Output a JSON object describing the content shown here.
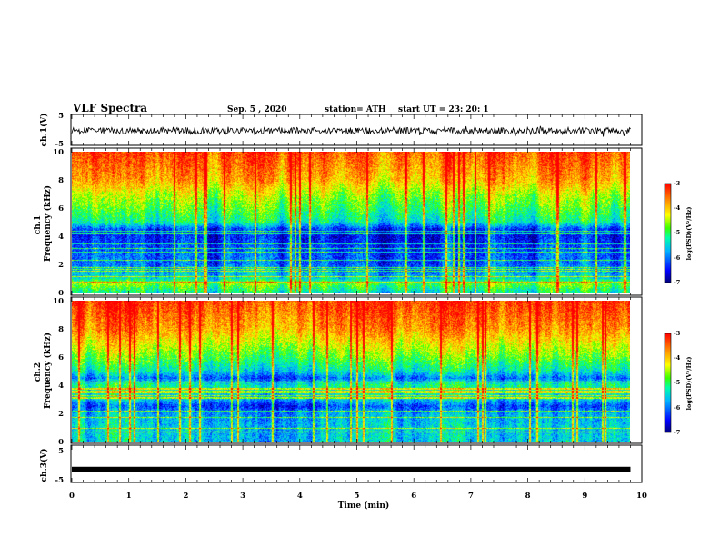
{
  "header": {
    "title": "VLF Spectra",
    "date": "Sep. 5  , 2020",
    "station": "station= ATH",
    "start": "start  UT  =    23: 20: 1"
  },
  "chart_data": [
    {
      "type": "line",
      "id": "ch1_waveform",
      "ylabel": "ch.1(V)",
      "ylim": [
        -5,
        5
      ],
      "yticks": [
        "5",
        "-5"
      ],
      "xlim": [
        0,
        10
      ],
      "approx_level": -0.3,
      "approx_range": [
        -1.4,
        0.8
      ]
    },
    {
      "type": "heatmap",
      "id": "ch1_spectrogram",
      "ylabel": "ch.1\nFrequency  (kHz)",
      "ylim": [
        0,
        10
      ],
      "yticks": [
        "0",
        "2",
        "4",
        "6",
        "8",
        "10"
      ],
      "xlim": [
        0,
        9.8
      ],
      "colorbar": {
        "label": "log(PSD)(V²/Hz)",
        "range": [
          -7,
          -3
        ],
        "ticks": [
          "-3",
          "-4",
          "-5",
          "-6",
          "-7"
        ]
      },
      "approx_profile_khz": [
        [
          0,
          -5.2
        ],
        [
          0.6,
          -4.6
        ],
        [
          1,
          -5.4
        ],
        [
          2,
          -6.0
        ],
        [
          3,
          -6.1
        ],
        [
          4,
          -6.4
        ],
        [
          4.5,
          -6.2
        ],
        [
          5,
          -5.2
        ],
        [
          6,
          -4.8
        ],
        [
          7,
          -4.4
        ],
        [
          8,
          -3.8
        ],
        [
          10,
          -3.3
        ]
      ]
    },
    {
      "type": "heatmap",
      "id": "ch2_spectrogram",
      "ylabel": "ch.2\nFrequency  (kHz)",
      "ylim": [
        0,
        10
      ],
      "yticks": [
        "0",
        "2",
        "4",
        "6",
        "8",
        "10"
      ],
      "xlim": [
        0,
        9.8
      ],
      "colorbar": {
        "label": "log(PSD)(V²/Hz)",
        "range": [
          -7,
          -3
        ],
        "ticks": [
          "-3",
          "-4",
          "-5",
          "-6",
          "-7"
        ]
      },
      "approx_profile_khz": [
        [
          0,
          -5.6
        ],
        [
          1,
          -5.6
        ],
        [
          2,
          -5.8
        ],
        [
          2.5,
          -6.3
        ],
        [
          3,
          -5.6
        ],
        [
          4,
          -5.2
        ],
        [
          4.5,
          -6.1
        ],
        [
          5,
          -5.4
        ],
        [
          6,
          -4.8
        ],
        [
          7,
          -4.3
        ],
        [
          8,
          -3.8
        ],
        [
          10,
          -3.3
        ]
      ]
    },
    {
      "type": "line",
      "id": "ch3_waveform",
      "ylabel": "ch.3(V)",
      "ylim": [
        -5,
        5
      ],
      "yticks": [
        "5",
        "-5"
      ],
      "xlim": [
        0,
        9.8
      ],
      "approx_level": -1.5,
      "approx_range": [
        -2.2,
        -0.8
      ]
    }
  ],
  "xaxis": {
    "label": "Time  (min)",
    "range": [
      0,
      10
    ],
    "ticks": [
      "0",
      "1",
      "2",
      "3",
      "4",
      "5",
      "6",
      "7",
      "8",
      "9",
      "10"
    ]
  },
  "colors": {
    "colormap": [
      "#00007a",
      "#0000ff",
      "#00b4ff",
      "#00ffaa",
      "#3cff00",
      "#ffff00",
      "#ff8c00",
      "#ff0000"
    ],
    "trace": "#000000"
  }
}
